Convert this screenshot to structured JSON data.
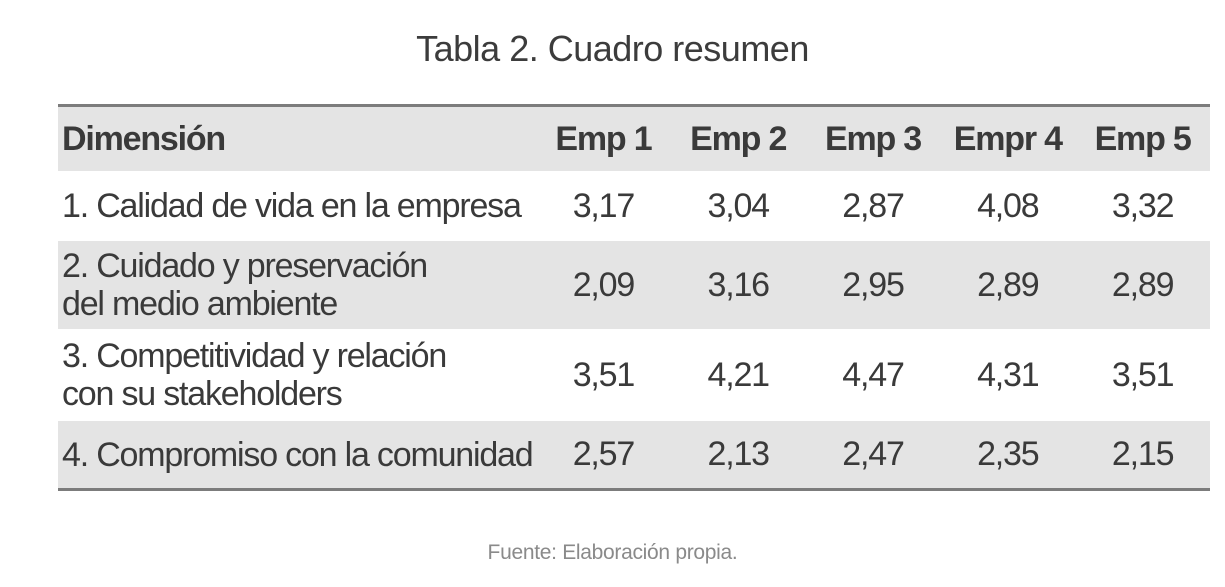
{
  "caption": "Tabla 2. Cuadro resumen",
  "table": {
    "headers": [
      "Dimensión",
      "Emp 1",
      "Emp 2",
      "Emp 3",
      "Empr 4",
      "Emp 5"
    ],
    "rows": [
      {
        "dimension": "1. Calidad de vida en la empresa",
        "values": [
          "3,17",
          "3,04",
          "2,87",
          "4,08",
          "3,32"
        ]
      },
      {
        "dimension": "2. Cuidado y preservación\ndel medio ambiente",
        "values": [
          "2,09",
          "3,16",
          "2,95",
          "2,89",
          "2,89"
        ]
      },
      {
        "dimension": "3. Competitividad y relación\ncon su stakeholders",
        "values": [
          "3,51",
          "4,21",
          "4,47",
          "4,31",
          "3,51"
        ]
      },
      {
        "dimension": "4. Compromiso con la comunidad",
        "values": [
          "2,57",
          "2,13",
          "2,47",
          "2,35",
          "2,15"
        ]
      }
    ]
  },
  "source": "Fuente: Elaboración propia."
}
